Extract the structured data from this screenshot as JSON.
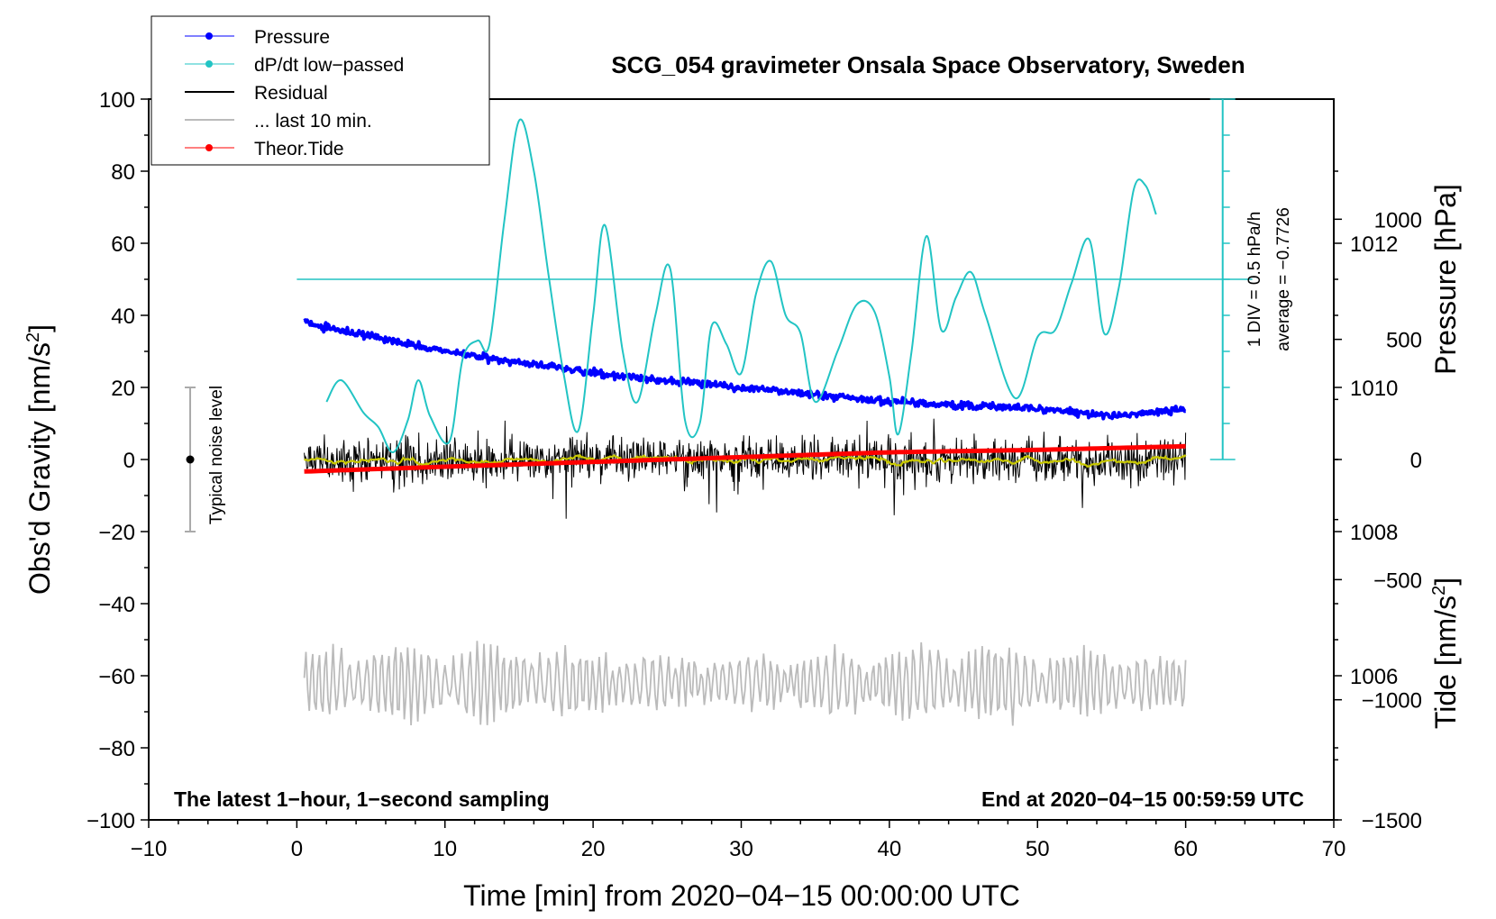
{
  "chart_data": {
    "type": "line",
    "title": "SCG_054 gravimeter Onsala Space Observatory, Sweden",
    "xlabel": "Time [min] from 2020−04−15 00:00:00 UTC",
    "ylabel_left": "Obs'd Gravity [nm/s",
    "ylabel_left_sup": "2",
    "ylabel_left_end": "]",
    "ylabel_pressure": "Pressure [hPa]",
    "ylabel_tide": "Tide [nm/s",
    "ylabel_tide_sup": "2",
    "ylabel_tide_end": "]",
    "xlim": [
      -10,
      70
    ],
    "ylim_gravity": [
      -100,
      100
    ],
    "ylim_pressure": [
      1004,
      1014
    ],
    "ylim_tide": [
      -1500,
      1500
    ],
    "x_ticks": [
      "−10",
      "0",
      "10",
      "20",
      "30",
      "40",
      "50",
      "60",
      "70"
    ],
    "gravity_ticks": [
      "−100",
      "−80",
      "−60",
      "−40",
      "−20",
      "0",
      "20",
      "40",
      "60",
      "80",
      "100"
    ],
    "pressure_ticks": [
      "1006",
      "1008",
      "1010",
      "1012"
    ],
    "tide_ticks": [
      "−1500",
      "−1000",
      "−500",
      "0",
      "500",
      "1000"
    ],
    "legend": [
      "Pressure",
      "dP/dt low−passed",
      "Residual",
      "... last 10 min.",
      "Theor.Tide"
    ],
    "colors": {
      "pressure": "#0000ff",
      "dpdt": "#22c4c4",
      "residual": "#000000",
      "last10": "#bbbbbb",
      "tide": "#ff0000",
      "smooth": "#c8c800",
      "noise_bar": "#aaaaaa"
    },
    "annotations": {
      "noise": "Typical noise level",
      "div": "1 DIV = 0.5 hPa/h",
      "average": "average = −0.7726",
      "left_footer": "The latest 1−hour, 1−second sampling",
      "right_footer": "End at 2020−04−15 00:59:59 UTC"
    },
    "series": [
      {
        "name": "Pressure",
        "axis": "pressure",
        "x": [
          0.5,
          10,
          20,
          30,
          40,
          50,
          55,
          60
        ],
        "values": [
          1010.9,
          1010.5,
          1010.2,
          1010.0,
          1009.8,
          1009.7,
          1009.6,
          1009.7
        ]
      },
      {
        "name": "dP/dt low−passed",
        "axis": "gravity",
        "x": [
          2.0,
          3.0,
          4.5,
          5.5,
          6.5,
          7.5,
          8.2,
          9.0,
          10.3,
          11.2,
          12.2,
          13.0,
          14.0,
          15.0,
          16.0,
          17.0,
          18.0,
          19.0,
          20.0,
          20.8,
          22.0,
          23.0,
          24.2,
          25.2,
          26.2,
          27.2,
          28.0,
          29.0,
          30.0,
          31.0,
          32.0,
          33.0,
          34.0,
          35.0,
          36.5,
          37.8,
          39.0,
          40.0,
          40.6,
          41.5,
          42.5,
          43.5,
          44.5,
          45.5,
          46.5,
          48.5,
          50.0,
          51.2,
          52.3,
          53.5,
          54.5,
          55.5,
          56.5,
          57.3,
          58.0
        ],
        "values": [
          16,
          22,
          13,
          9,
          2,
          11,
          22,
          12,
          5,
          28,
          33,
          32,
          66,
          94,
          80,
          51,
          24,
          8,
          40,
          65,
          30,
          16,
          40,
          53,
          11,
          10,
          37,
          32,
          24,
          46,
          55,
          40,
          35,
          16,
          30,
          43,
          41,
          23,
          7,
          30,
          62,
          36,
          45,
          52,
          40,
          17,
          34,
          36,
          49,
          61,
          35,
          48,
          75,
          76,
          68
        ]
      },
      {
        "name": "Residual",
        "axis": "gravity",
        "x": [
          0.5,
          60
        ],
        "values": [
          0,
          0
        ]
      },
      {
        "name": "... last 10 min.",
        "axis": "gravity",
        "x": [
          0.5,
          60
        ],
        "values": [
          -62,
          -62
        ]
      },
      {
        "name": "Theor.Tide",
        "axis": "tide",
        "x": [
          0.5,
          10,
          20,
          30,
          40,
          50,
          60
        ],
        "values": [
          -50,
          -30,
          -10,
          10,
          30,
          40,
          55
        ]
      }
    ]
  }
}
